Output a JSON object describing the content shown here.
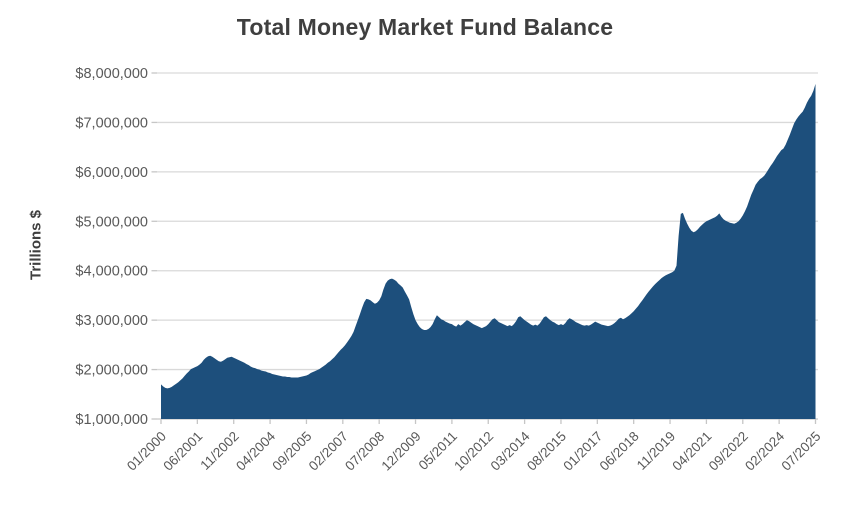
{
  "chart_data": {
    "type": "area",
    "title": "Total Money Market Fund Balance",
    "ylabel": "Trillions $",
    "xlabel": "",
    "grid": true,
    "legend": false,
    "background": "#ffffff",
    "fill_color": "#1d4f7c",
    "grid_color": "#d9d9d9",
    "axis_line_color": "#c6c6c6",
    "tick_label_color": "#595959",
    "title_color": "#3f3f3f",
    "ylim": [
      1000000,
      8000000
    ],
    "y_ticks": [
      {
        "label": "$8,000,000",
        "value": 8000000
      },
      {
        "label": "$7,000,000",
        "value": 7000000
      },
      {
        "label": "$6,000,000",
        "value": 6000000
      },
      {
        "label": "$5,000,000",
        "value": 5000000
      },
      {
        "label": "$4,000,000",
        "value": 4000000
      },
      {
        "label": "$3,000,000",
        "value": 3000000
      },
      {
        "label": "$2,000,000",
        "value": 2000000
      },
      {
        "label": "$1,000,000",
        "value": 1000000
      }
    ],
    "x_ticks": [
      "01/2000",
      "06/2001",
      "11/2002",
      "04/2004",
      "09/2005",
      "02/2007",
      "07/2008",
      "12/2009",
      "05/2011",
      "10/2012",
      "03/2014",
      "08/2015",
      "01/2017",
      "06/2018",
      "11/2019",
      "04/2021",
      "09/2022",
      "02/2024",
      "07/2025"
    ],
    "x_tick_interval_months": 17,
    "x_frequency": "monthly",
    "x_range": [
      "01/2000",
      "07/2025"
    ],
    "series": [
      {
        "name": "Total Money Market Fund Balance",
        "start": "01/2000",
        "values": [
          1700000,
          1660000,
          1630000,
          1620000,
          1630000,
          1650000,
          1680000,
          1710000,
          1740000,
          1780000,
          1820000,
          1870000,
          1920000,
          1960000,
          2010000,
          2030000,
          2050000,
          2070000,
          2100000,
          2140000,
          2200000,
          2240000,
          2270000,
          2280000,
          2260000,
          2230000,
          2200000,
          2170000,
          2160000,
          2180000,
          2210000,
          2240000,
          2250000,
          2260000,
          2240000,
          2220000,
          2200000,
          2180000,
          2160000,
          2140000,
          2110000,
          2090000,
          2060000,
          2040000,
          2030000,
          2010000,
          2000000,
          1980000,
          1970000,
          1960000,
          1940000,
          1930000,
          1910000,
          1900000,
          1890000,
          1880000,
          1870000,
          1860000,
          1860000,
          1850000,
          1850000,
          1840000,
          1840000,
          1840000,
          1840000,
          1850000,
          1860000,
          1870000,
          1880000,
          1900000,
          1930000,
          1950000,
          1970000,
          1990000,
          2010000,
          2040000,
          2070000,
          2100000,
          2140000,
          2170000,
          2210000,
          2250000,
          2300000,
          2350000,
          2400000,
          2440000,
          2490000,
          2550000,
          2610000,
          2680000,
          2760000,
          2880000,
          3000000,
          3120000,
          3250000,
          3360000,
          3430000,
          3420000,
          3400000,
          3360000,
          3330000,
          3350000,
          3400000,
          3480000,
          3620000,
          3740000,
          3800000,
          3830000,
          3840000,
          3820000,
          3790000,
          3740000,
          3700000,
          3660000,
          3580000,
          3500000,
          3420000,
          3260000,
          3120000,
          3000000,
          2920000,
          2860000,
          2820000,
          2800000,
          2800000,
          2820000,
          2860000,
          2920000,
          3020000,
          3100000,
          3060000,
          3020000,
          3000000,
          2970000,
          2950000,
          2930000,
          2920000,
          2890000,
          2870000,
          2920000,
          2890000,
          2920000,
          2960000,
          3000000,
          2980000,
          2950000,
          2920000,
          2900000,
          2880000,
          2860000,
          2840000,
          2860000,
          2880000,
          2920000,
          2970000,
          3020000,
          3040000,
          3000000,
          2960000,
          2940000,
          2920000,
          2900000,
          2880000,
          2900000,
          2880000,
          2920000,
          2980000,
          3060000,
          3080000,
          3040000,
          3000000,
          2970000,
          2940000,
          2910000,
          2890000,
          2910000,
          2890000,
          2930000,
          2990000,
          3060000,
          3080000,
          3040000,
          3000000,
          2970000,
          2950000,
          2920000,
          2900000,
          2920000,
          2900000,
          2940000,
          3000000,
          3040000,
          3020000,
          2990000,
          2960000,
          2940000,
          2920000,
          2900000,
          2890000,
          2900000,
          2890000,
          2910000,
          2940000,
          2970000,
          2950000,
          2930000,
          2910000,
          2900000,
          2890000,
          2880000,
          2890000,
          2910000,
          2940000,
          2980000,
          3030000,
          3050000,
          3020000,
          3040000,
          3070000,
          3100000,
          3140000,
          3180000,
          3230000,
          3280000,
          3340000,
          3400000,
          3460000,
          3520000,
          3580000,
          3630000,
          3680000,
          3730000,
          3770000,
          3810000,
          3850000,
          3880000,
          3910000,
          3930000,
          3950000,
          3970000,
          4000000,
          4100000,
          4700000,
          5150000,
          5170000,
          5050000,
          4950000,
          4870000,
          4810000,
          4780000,
          4800000,
          4840000,
          4890000,
          4930000,
          4970000,
          5000000,
          5020000,
          5040000,
          5060000,
          5080000,
          5110000,
          5160000,
          5090000,
          5040000,
          5010000,
          4990000,
          4970000,
          4960000,
          4950000,
          4970000,
          5000000,
          5050000,
          5120000,
          5200000,
          5300000,
          5420000,
          5540000,
          5640000,
          5740000,
          5800000,
          5850000,
          5880000,
          5920000,
          5980000,
          6050000,
          6120000,
          6180000,
          6250000,
          6320000,
          6380000,
          6440000,
          6470000,
          6550000,
          6650000,
          6750000,
          6870000,
          6980000,
          7060000,
          7120000,
          7170000,
          7220000,
          7300000,
          7400000,
          7480000,
          7540000,
          7640000,
          7780000
        ]
      }
    ]
  }
}
